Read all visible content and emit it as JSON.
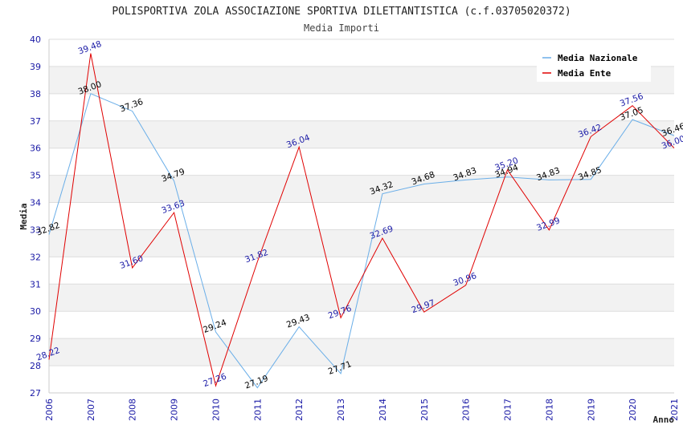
{
  "chart_data": {
    "type": "line",
    "title": "POLISPORTIVA ZOLA ASSOCIAZIONE SPORTIVA DILETTANTISTICA (c.f.03705020372)",
    "subtitle": "Media Importi",
    "xlabel": "Anno",
    "ylabel": "Media",
    "ylim": [
      27,
      40
    ],
    "yticks": [
      "27",
      "28",
      "29",
      "30",
      "31",
      "32",
      "33",
      "34",
      "35",
      "36",
      "37",
      "38",
      "39",
      "40"
    ],
    "x": [
      "2006",
      "2007",
      "2008",
      "2009",
      "2010",
      "2011",
      "2012",
      "2013",
      "2014",
      "2015",
      "2016",
      "2017",
      "2018",
      "2019",
      "2020",
      "2021"
    ],
    "grid": true,
    "legend_position": "top-right",
    "series": [
      {
        "name": "Media Nazionale",
        "color": "#6aaee8",
        "label_color": "#000000",
        "values": [
          32.82,
          38.0,
          37.36,
          34.79,
          29.24,
          27.19,
          29.43,
          27.71,
          34.32,
          34.68,
          34.83,
          34.94,
          34.83,
          34.85,
          37.05,
          36.46
        ],
        "labels": [
          "32.82",
          "38.00",
          "37.36",
          "34.79",
          "29.24",
          "27.19",
          "29.43",
          "27.71",
          "34.32",
          "34.68",
          "34.83",
          "34.94",
          "34.83",
          "34.85",
          "37.05",
          "36.46"
        ]
      },
      {
        "name": "Media Ente",
        "color": "#e00000",
        "label_color": "#1a1aa6",
        "values": [
          28.22,
          39.48,
          31.6,
          33.63,
          27.26,
          31.82,
          36.04,
          29.76,
          32.69,
          29.97,
          30.96,
          35.2,
          32.99,
          36.42,
          37.56,
          36.0
        ],
        "labels": [
          "28.22",
          "39.48",
          "31.60",
          "33.63",
          "27.26",
          "31.82",
          "36.04",
          "29.76",
          "32.69",
          "29.97",
          "30.96",
          "35.20",
          "32.99",
          "36.42",
          "37.56",
          "36.00"
        ]
      }
    ]
  }
}
